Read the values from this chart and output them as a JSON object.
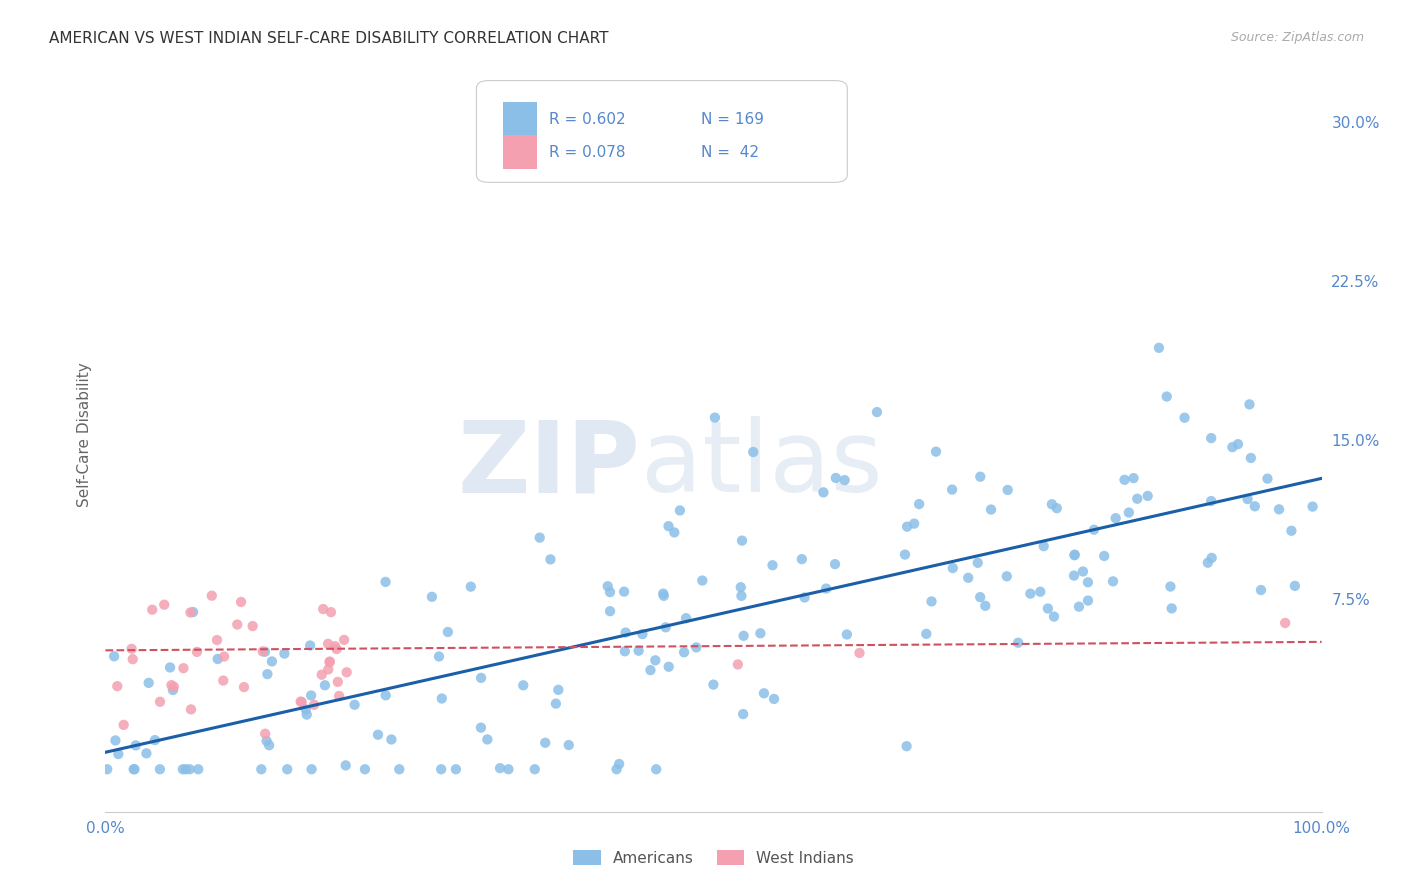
{
  "title": "AMERICAN VS WEST INDIAN SELF-CARE DISABILITY CORRELATION CHART",
  "source": "Source: ZipAtlas.com",
  "ylabel": "Self-Care Disability",
  "xlim": [
    0.0,
    1.0
  ],
  "ylim": [
    -0.025,
    0.33
  ],
  "xtick_labels": [
    "0.0%",
    "100.0%"
  ],
  "xtick_positions": [
    0.0,
    1.0
  ],
  "ytick_labels": [
    "7.5%",
    "15.0%",
    "22.5%",
    "30.0%"
  ],
  "ytick_positions": [
    0.075,
    0.15,
    0.225,
    0.3
  ],
  "american_color": "#8bbfe8",
  "west_indian_color": "#f4a0b0",
  "trend_american_color": "#1a5fa8",
  "trend_west_indian_color": "#d05060",
  "R_american": 0.602,
  "N_american": 169,
  "R_west_indian": 0.078,
  "N_west_indian": 42,
  "background_color": "#ffffff",
  "grid_color": "#dddddd",
  "title_color": "#333333",
  "axis_label_color": "#5588cc",
  "ylabel_color": "#666666",
  "legend_edge_color": "#cccccc",
  "am_trend_start_x": 0.0,
  "am_trend_start_y": 0.003,
  "am_trend_end_x": 1.0,
  "am_trend_end_y": 0.132,
  "wi_trend_start_x": 0.0,
  "wi_trend_start_y": 0.051,
  "wi_trend_end_x": 1.0,
  "wi_trend_end_y": 0.055
}
